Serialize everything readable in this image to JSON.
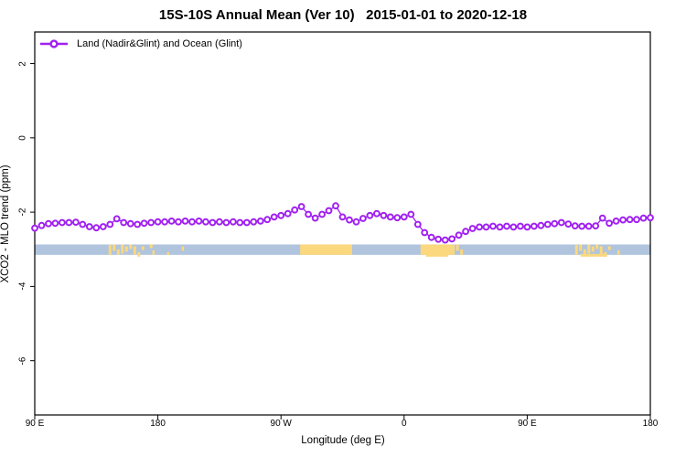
{
  "chart_data": {
    "type": "line",
    "title": "15S-10S Annual Mean (Ver 10)   2015-01-01 to 2020-12-18",
    "xlabel": "Longitude (deg E)",
    "ylabel": "XCO2 - MLO trend (ppm)",
    "xlim": [
      90,
      540
    ],
    "ylim": [
      -7.46,
      2.85
    ],
    "grid": false,
    "legend_position": "top-left-inside",
    "x_ticks": [
      {
        "value": 90,
        "label": "90 E"
      },
      {
        "value": 180,
        "label": "180"
      },
      {
        "value": 270,
        "label": "90 W"
      },
      {
        "value": 360,
        "label": "0"
      },
      {
        "value": 450,
        "label": "90 E"
      },
      {
        "value": 540,
        "label": "180"
      }
    ],
    "y_ticks": [
      {
        "value": 2,
        "label": "2"
      },
      {
        "value": 0,
        "label": "0"
      },
      {
        "value": -2,
        "label": "-2"
      },
      {
        "value": -4,
        "label": "-4"
      },
      {
        "value": -6,
        "label": "-6"
      }
    ],
    "legend": [
      {
        "label": "Land (Nadir&Glint) and Ocean (Glint)",
        "color": "#A020F0",
        "marker": "open-circle"
      }
    ],
    "series": [
      {
        "name": "Land (Nadir&Glint) and Ocean (Glint)",
        "color": "#A020F0",
        "marker_fill": "#ffffff",
        "x": [
          90,
          95,
          100,
          105,
          110,
          115,
          120,
          125,
          130,
          135,
          140,
          145,
          150,
          155,
          160,
          165,
          170,
          175,
          180,
          185,
          190,
          195,
          200,
          205,
          210,
          215,
          220,
          225,
          230,
          235,
          240,
          245,
          250,
          255,
          260,
          265,
          270,
          275,
          280,
          285,
          290,
          295,
          300,
          305,
          310,
          315,
          320,
          325,
          330,
          335,
          340,
          345,
          350,
          355,
          360,
          365,
          370,
          375,
          380,
          385,
          390,
          395,
          400,
          405,
          410,
          415,
          420,
          425,
          430,
          435,
          440,
          445,
          450,
          455,
          460,
          465,
          470,
          475,
          480,
          485,
          490,
          495,
          500,
          505,
          510,
          515,
          520,
          525,
          530,
          535,
          540
        ],
        "y": [
          -2.43,
          -2.36,
          -2.31,
          -2.3,
          -2.28,
          -2.28,
          -2.27,
          -2.33,
          -2.39,
          -2.42,
          -2.39,
          -2.33,
          -2.18,
          -2.28,
          -2.31,
          -2.33,
          -2.3,
          -2.28,
          -2.26,
          -2.26,
          -2.24,
          -2.26,
          -2.24,
          -2.26,
          -2.24,
          -2.26,
          -2.28,
          -2.26,
          -2.28,
          -2.26,
          -2.28,
          -2.28,
          -2.26,
          -2.24,
          -2.2,
          -2.13,
          -2.09,
          -2.04,
          -1.94,
          -1.85,
          -2.06,
          -2.16,
          -2.06,
          -1.96,
          -1.83,
          -2.13,
          -2.21,
          -2.26,
          -2.17,
          -2.09,
          -2.04,
          -2.09,
          -2.13,
          -2.15,
          -2.13,
          -2.06,
          -2.33,
          -2.55,
          -2.68,
          -2.73,
          -2.75,
          -2.72,
          -2.62,
          -2.52,
          -2.44,
          -2.4,
          -2.4,
          -2.38,
          -2.4,
          -2.38,
          -2.4,
          -2.38,
          -2.4,
          -2.38,
          -2.36,
          -2.33,
          -2.31,
          -2.28,
          -2.32,
          -2.37,
          -2.38,
          -2.38,
          -2.37,
          -2.16,
          -2.3,
          -2.24,
          -2.21,
          -2.2,
          -2.2,
          -2.16,
          -2.15
        ]
      }
    ],
    "surface_band": {
      "description": "ocean/land surface-type strip along latitude band",
      "y_top": -2.87,
      "y_bottom": -3.15,
      "ocean_color": "#B0C4DE",
      "land_color": "#FBD87D",
      "land_segments": [
        {
          "from": 144,
          "to": 175,
          "style": "patchy"
        },
        {
          "from": 176,
          "to": 198,
          "style": "sparse"
        },
        {
          "from": 284,
          "to": 322,
          "style": "solid"
        },
        {
          "from": 372,
          "to": 395,
          "style": "solid",
          "overflow_below": true
        },
        {
          "from": 395,
          "to": 404,
          "style": "patchy"
        },
        {
          "from": 485,
          "to": 511,
          "style": "patchy",
          "overflow_below": true
        },
        {
          "from": 516,
          "to": 518,
          "style": "sparse"
        }
      ]
    }
  }
}
